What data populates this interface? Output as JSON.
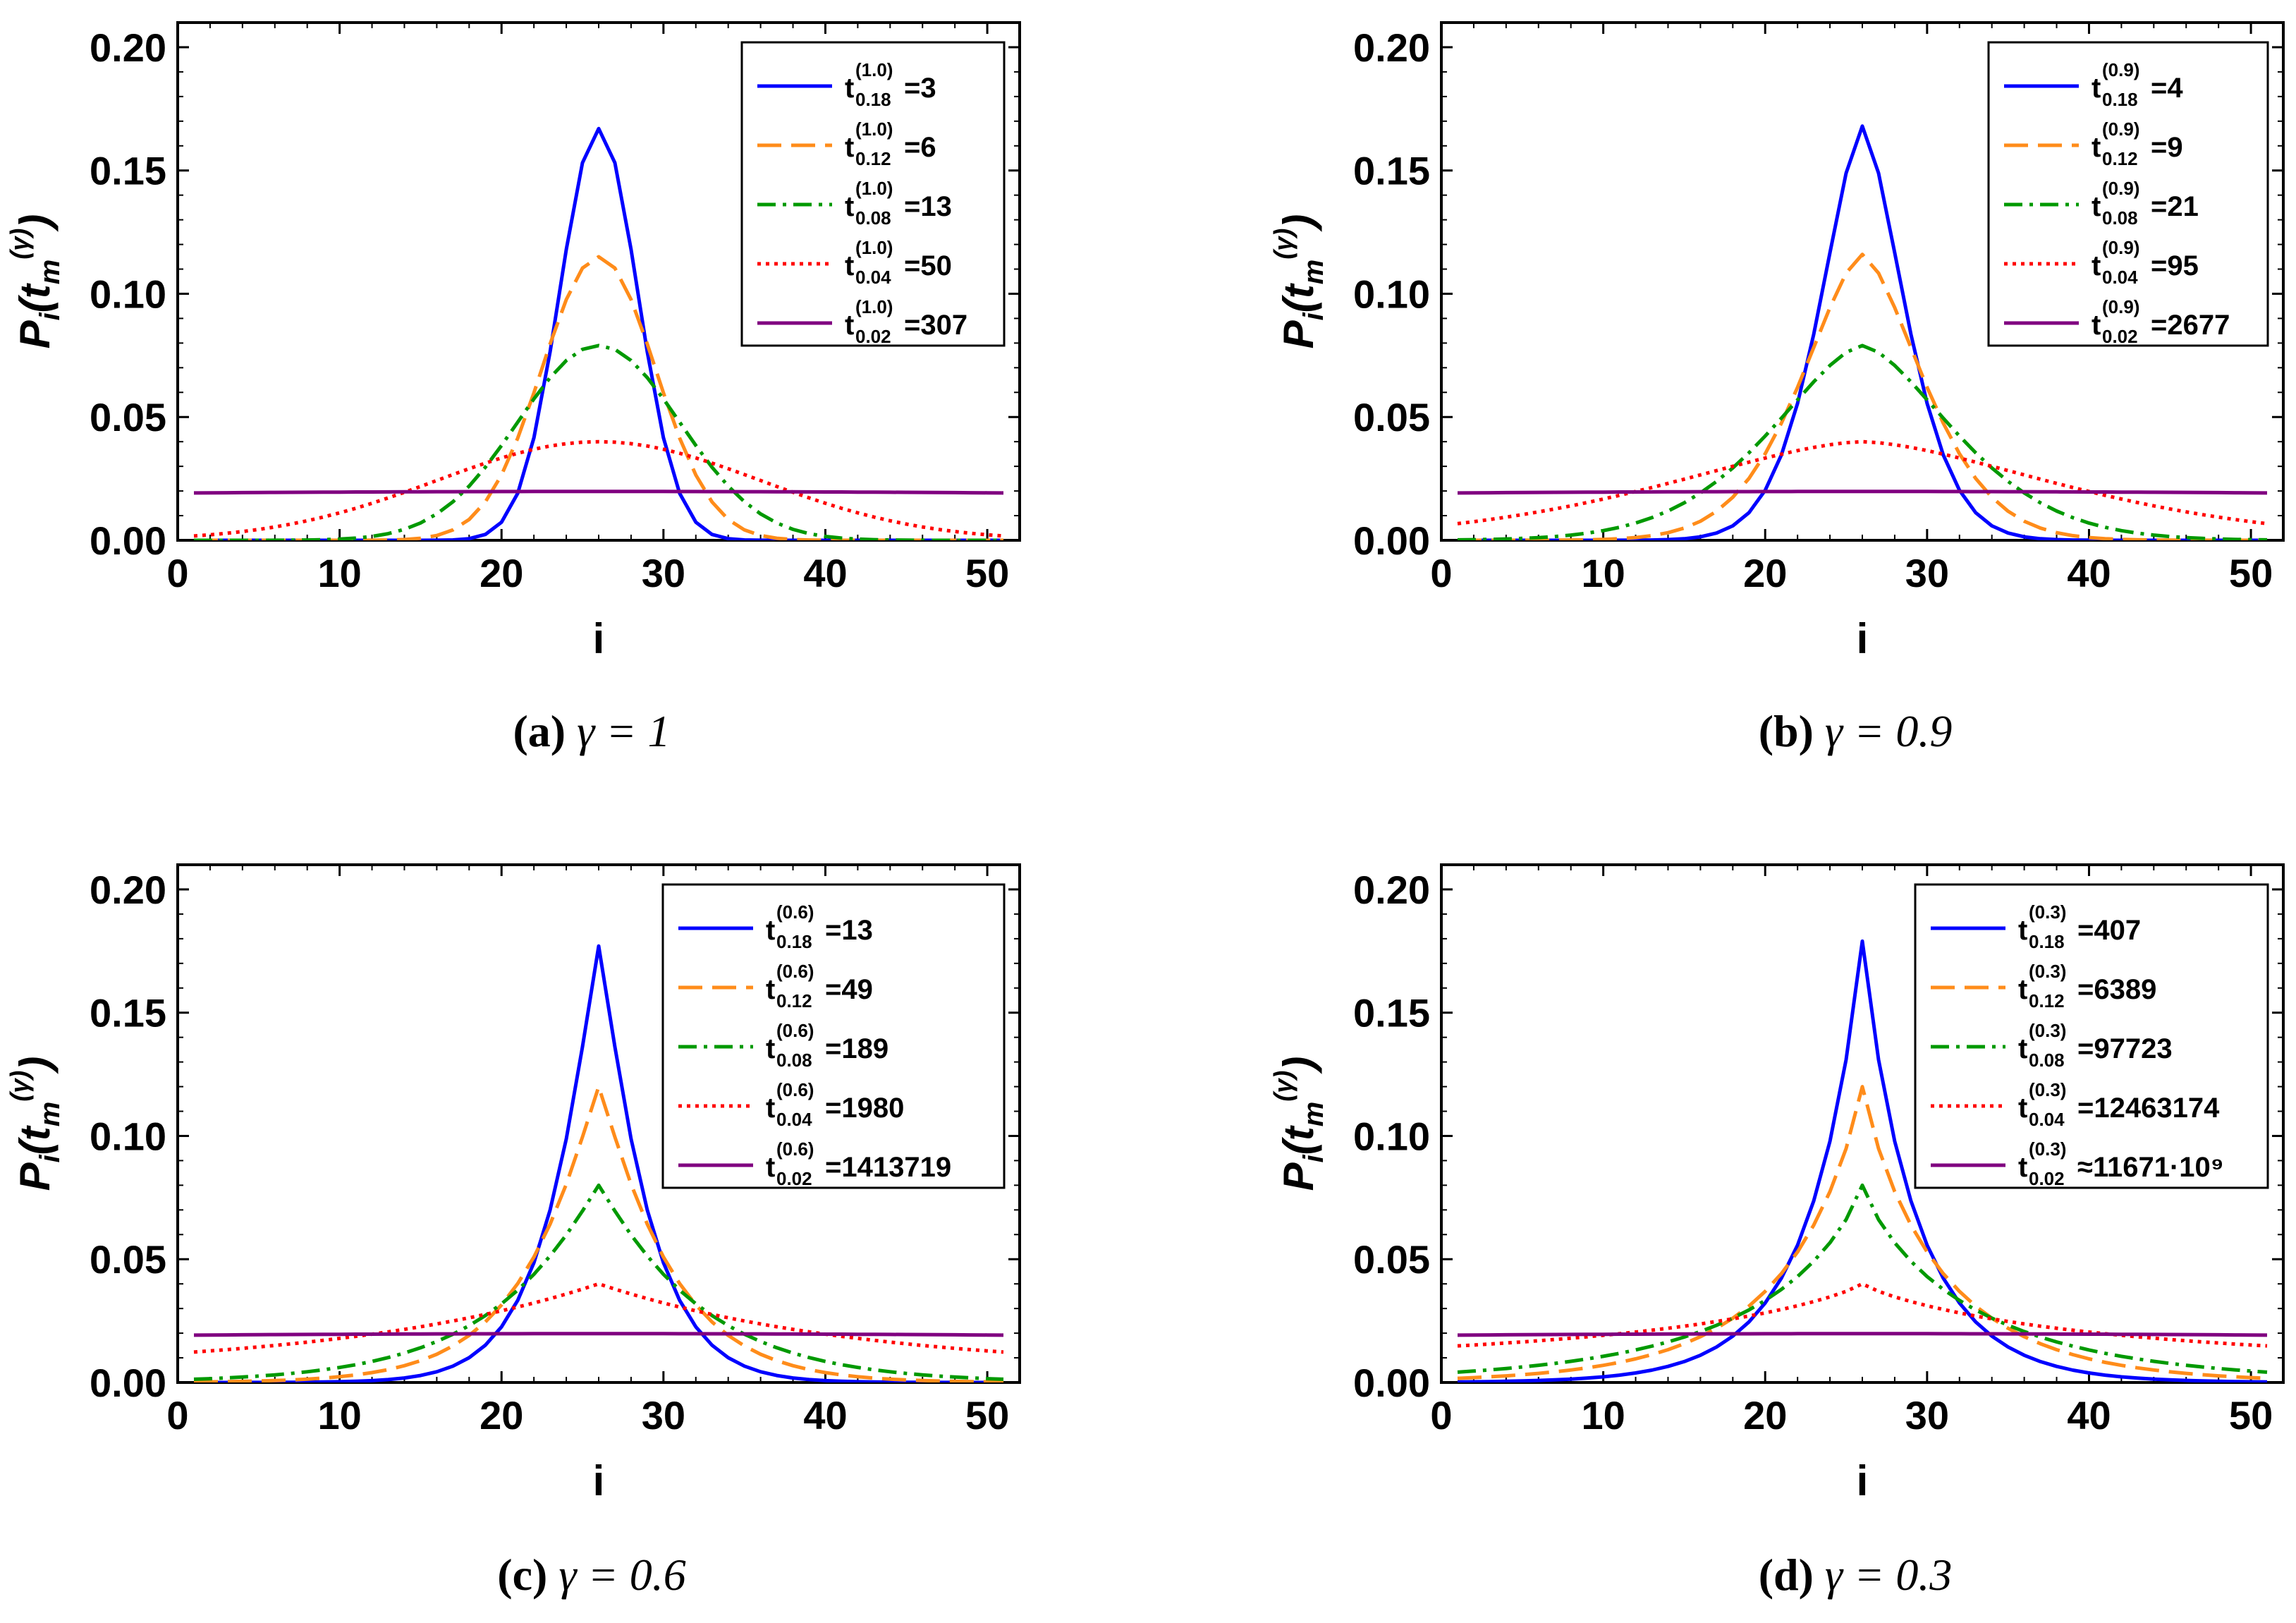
{
  "chart_data": [
    {
      "type": "line",
      "panel": "a",
      "caption": {
        "label": "(a)",
        "text": "γ = 1"
      },
      "xlabel": "i",
      "ylabel": "P_i(t_m^(γ))",
      "xlim": [
        0,
        52
      ],
      "ylim": [
        0,
        0.21
      ],
      "xticks": [
        "0",
        "10",
        "20",
        "30",
        "40",
        "50"
      ],
      "yticks": [
        "0.00",
        "0.05",
        "0.10",
        "0.15",
        "0.20"
      ],
      "legend_position": "top-right",
      "series": [
        {
          "t": "t",
          "sup": "(1.0)",
          "sub": "0.18",
          "rel": "=",
          "value": "3",
          "color": "#0000ff",
          "dash": "solid",
          "peak": 0.167,
          "shape": "gauss",
          "width": 2.4
        },
        {
          "t": "t",
          "sup": "(1.0)",
          "sub": "0.12",
          "rel": "=",
          "value": "6",
          "color": "#ff8c1a",
          "dash": "dashed",
          "peak": 0.115,
          "shape": "gauss",
          "width": 3.5
        },
        {
          "t": "t",
          "sup": "(1.0)",
          "sub": "0.08",
          "rel": "=",
          "value": "13",
          "color": "#009900",
          "dash": "dashdot",
          "peak": 0.079,
          "shape": "gauss",
          "width": 5.0
        },
        {
          "t": "t",
          "sup": "(1.0)",
          "sub": "0.04",
          "rel": "=",
          "value": "50",
          "color": "#ff0000",
          "dash": "dotted",
          "peak": 0.04,
          "shape": "gauss",
          "width": 10.0
        },
        {
          "t": "t",
          "sup": "(1.0)",
          "sub": "0.02",
          "rel": "=",
          "value": "307",
          "color": "#800080",
          "dash": "solid",
          "peak": 0.0198,
          "shape": "flat",
          "edge": 0.0192
        }
      ]
    },
    {
      "type": "line",
      "panel": "b",
      "caption": {
        "label": "(b)",
        "text": "γ = 0.9"
      },
      "xlabel": "i",
      "ylabel": "P_i(t_m^(γ))",
      "xlim": [
        0,
        52
      ],
      "ylim": [
        0,
        0.21
      ],
      "xticks": [
        "0",
        "10",
        "20",
        "30",
        "40",
        "50"
      ],
      "yticks": [
        "0.00",
        "0.05",
        "0.10",
        "0.15",
        "0.20"
      ],
      "legend_position": "top-right",
      "series": [
        {
          "t": "t",
          "sup": "(0.9)",
          "sub": "0.18",
          "rel": "=",
          "value": "4",
          "color": "#0000ff",
          "dash": "solid",
          "peak": 0.168,
          "shape": "mix",
          "width": 2.8,
          "exp": 1.6
        },
        {
          "t": "t",
          "sup": "(0.9)",
          "sub": "0.12",
          "rel": "=",
          "value": "9",
          "color": "#ff8c1a",
          "dash": "dashed",
          "peak": 0.116,
          "shape": "mix",
          "width": 4.0,
          "exp": 1.6
        },
        {
          "t": "t",
          "sup": "(0.9)",
          "sub": "0.08",
          "rel": "=",
          "value": "21",
          "color": "#009900",
          "dash": "dashdot",
          "peak": 0.079,
          "shape": "mix",
          "width": 6.0,
          "exp": 1.6
        },
        {
          "t": "t",
          "sup": "(0.9)",
          "sub": "0.04",
          "rel": "=",
          "value": "95",
          "color": "#ff0000",
          "dash": "dotted",
          "peak": 0.04,
          "shape": "mix",
          "width": 13.0,
          "exp": 1.6
        },
        {
          "t": "t",
          "sup": "(0.9)",
          "sub": "0.02",
          "rel": "=",
          "value": "2677",
          "color": "#800080",
          "dash": "solid",
          "peak": 0.0198,
          "shape": "flat",
          "edge": 0.0192
        }
      ]
    },
    {
      "type": "line",
      "panel": "c",
      "caption": {
        "label": "(c)",
        "text": "γ = 0.6"
      },
      "xlabel": "i",
      "ylabel": "P_i(t_m^(γ))",
      "xlim": [
        0,
        52
      ],
      "ylim": [
        0,
        0.21
      ],
      "xticks": [
        "0",
        "10",
        "20",
        "30",
        "40",
        "50"
      ],
      "yticks": [
        "0.00",
        "0.05",
        "0.10",
        "0.15",
        "0.20"
      ],
      "legend_position": "top-right",
      "series": [
        {
          "t": "t",
          "sup": "(0.6)",
          "sub": "0.18",
          "rel": "=",
          "value": "13",
          "color": "#0000ff",
          "dash": "solid",
          "peak": 0.177,
          "shape": "exp",
          "width": 3.2,
          "exp": 1.15
        },
        {
          "t": "t",
          "sup": "(0.6)",
          "sub": "0.12",
          "rel": "=",
          "value": "49",
          "color": "#ff8c1a",
          "dash": "dashed",
          "peak": 0.12,
          "shape": "exp",
          "width": 4.6,
          "exp": 1.1
        },
        {
          "t": "t",
          "sup": "(0.6)",
          "sub": "0.08",
          "rel": "=",
          "value": "189",
          "color": "#009900",
          "dash": "dashdot",
          "peak": 0.08,
          "shape": "exp",
          "width": 6.5,
          "exp": 1.05
        },
        {
          "t": "t",
          "sup": "(0.6)",
          "sub": "0.04",
          "rel": "=",
          "value": "1980",
          "color": "#ff0000",
          "dash": "dotted",
          "peak": 0.04,
          "shape": "exp",
          "width": 16.0,
          "exp": 1.0,
          "floor": 0.005
        },
        {
          "t": "t",
          "sup": "(0.6)",
          "sub": "0.02",
          "rel": "=",
          "value": "1413719",
          "color": "#800080",
          "dash": "solid",
          "peak": 0.0198,
          "shape": "flat",
          "edge": 0.0192
        }
      ]
    },
    {
      "type": "line",
      "panel": "d",
      "caption": {
        "label": "(d)",
        "text": "γ = 0.3"
      },
      "xlabel": "i",
      "ylabel": "P_i(t_m^(γ))",
      "xlim": [
        0,
        52
      ],
      "ylim": [
        0,
        0.21
      ],
      "xticks": [
        "0",
        "10",
        "20",
        "30",
        "40",
        "50"
      ],
      "yticks": [
        "0.00",
        "0.05",
        "0.10",
        "0.15",
        "0.20"
      ],
      "legend_position": "top-right",
      "series": [
        {
          "t": "t",
          "sup": "(0.3)",
          "sub": "0.18",
          "rel": "=",
          "value": "407",
          "color": "#0000ff",
          "dash": "solid",
          "peak": 0.179,
          "shape": "exp",
          "width": 3.4,
          "exp": 0.95
        },
        {
          "t": "t",
          "sup": "(0.3)",
          "sub": "0.12",
          "rel": "=",
          "value": "6389",
          "color": "#ff8c1a",
          "dash": "dashed",
          "peak": 0.12,
          "shape": "exp",
          "width": 5.0,
          "exp": 0.9
        },
        {
          "t": "t",
          "sup": "(0.3)",
          "sub": "0.08",
          "rel": "=",
          "value": "97723",
          "color": "#009900",
          "dash": "dashdot",
          "peak": 0.08,
          "shape": "exp",
          "width": 7.0,
          "exp": 0.85
        },
        {
          "t": "t",
          "sup": "(0.3)",
          "sub": "0.04",
          "rel": "=",
          "value": "12463174",
          "color": "#ff0000",
          "dash": "dotted",
          "peak": 0.04,
          "shape": "exp",
          "width": 15.0,
          "exp": 0.85,
          "floor": 0.008
        },
        {
          "t": "t",
          "sup": "(0.3)",
          "sub": "0.02",
          "rel": "≈",
          "value": "11671·10⁹",
          "color": "#800080",
          "dash": "solid",
          "peak": 0.0198,
          "shape": "flat",
          "edge": 0.0192
        }
      ]
    }
  ]
}
